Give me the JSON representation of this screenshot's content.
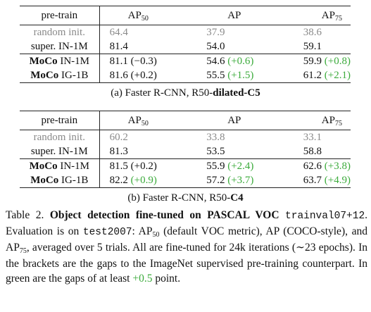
{
  "tables": [
    {
      "header": {
        "col0": "pre-train",
        "ap50_main": "AP",
        "ap50_sub": "50",
        "ap": "AP",
        "ap75_main": "AP",
        "ap75_sub": "75"
      },
      "rows": [
        {
          "name": "random init.",
          "v1": "64.4",
          "v2": "37.9",
          "v3": "38.6",
          "v1d": "",
          "v2d": "",
          "v3d": ""
        },
        {
          "name": "super. IN-1M",
          "v1": "81.4",
          "v2": "54.0",
          "v3": "59.1",
          "v1d": "",
          "v2d": "",
          "v3d": ""
        },
        {
          "name_b": "MoCo",
          "name_r": "IN-1M",
          "v1": "81.1",
          "v1d": "(−0.3)",
          "v2": "54.6",
          "v2d": "(+0.6)",
          "v3": "59.9",
          "v3d": "(+0.8)"
        },
        {
          "name_b": "MoCo",
          "name_r": "IG-1B",
          "v1": "81.6",
          "v1d": "(+0.2)",
          "v2": "55.5",
          "v2d": "(+1.5)",
          "v3": "61.2",
          "v3d": "(+2.1)"
        }
      ],
      "caption_prefix": "(a) Faster R-CNN, R50-",
      "caption_bold": "dilated-C5"
    },
    {
      "header": {
        "col0": "pre-train",
        "ap50_main": "AP",
        "ap50_sub": "50",
        "ap": "AP",
        "ap75_main": "AP",
        "ap75_sub": "75"
      },
      "rows": [
        {
          "name": "random init.",
          "v1": "60.2",
          "v2": "33.8",
          "v3": "33.1",
          "v1d": "",
          "v2d": "",
          "v3d": ""
        },
        {
          "name": "super. IN-1M",
          "v1": "81.3",
          "v2": "53.5",
          "v3": "58.8",
          "v1d": "",
          "v2d": "",
          "v3d": ""
        },
        {
          "name_b": "MoCo",
          "name_r": "IN-1M",
          "v1": "81.5",
          "v1d": "(+0.2)",
          "v2": "55.9",
          "v2d": "(+2.4)",
          "v3": "62.6",
          "v3d": "(+3.8)"
        },
        {
          "name_b": "MoCo",
          "name_r": "IG-1B",
          "v1": "82.2",
          "v1d": "(+0.9)",
          "v2": "57.2",
          "v2d": "(+3.7)",
          "v3": "63.7",
          "v3d": "(+4.9)"
        }
      ],
      "caption_prefix": "(b) Faster R-CNN, R50-",
      "caption_bold": "C4"
    }
  ],
  "caption": {
    "label": "Table 2.",
    "title": "Object detection fine-tuned on PASCAL VOC",
    "mono1": "trainval07+12",
    "t1": ". Evaluation is on ",
    "mono2": "test2007",
    "t2": ": AP",
    "sub50": "50",
    "t3": " (default VOC metric), AP (COCO-style), and AP",
    "sub75": "75",
    "t4": ", averaged over 5 trials. All are fine-tuned for 24k iterations (∼23 epochs). In the brackets are the gaps to the ImageNet supervised pre-training counterpart. In green are the gaps of at least ",
    "green": "+0.5",
    "t5": " point."
  },
  "colors": {
    "gray": "#8a8a8a",
    "green": "#3cab3c"
  }
}
